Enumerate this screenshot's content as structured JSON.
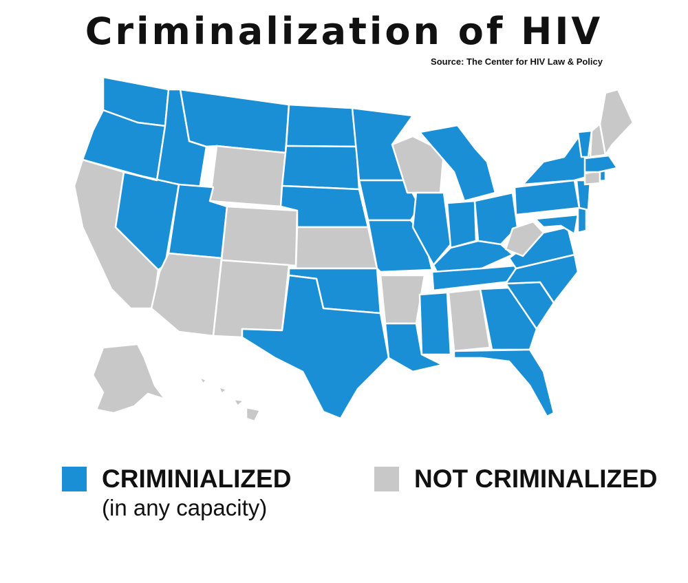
{
  "title": "Criminalization of HIV",
  "source": "Source: The Center for HIV Law & Policy",
  "colors": {
    "criminalized": "#1a8fd6",
    "not_criminalized": "#c8c8c8"
  },
  "legend": {
    "criminalized": {
      "label": "CRIMINIALIZED",
      "sublabel": "(in any capacity)"
    },
    "not_criminalized": {
      "label": "NOT CRIMINALIZED"
    }
  },
  "states": {
    "WA": "criminalized",
    "OR": "criminalized",
    "CA": "not_criminalized",
    "NV": "criminalized",
    "ID": "criminalized",
    "MT": "criminalized",
    "WY": "not_criminalized",
    "UT": "criminalized",
    "AZ": "not_criminalized",
    "CO": "not_criminalized",
    "NM": "not_criminalized",
    "ND": "criminalized",
    "SD": "criminalized",
    "NE": "criminalized",
    "KS": "not_criminalized",
    "OK": "criminalized",
    "TX": "criminalized",
    "MN": "criminalized",
    "IA": "criminalized",
    "MO": "criminalized",
    "AR": "not_criminalized",
    "LA": "criminalized",
    "WI": "not_criminalized",
    "IL": "criminalized",
    "MI": "criminalized",
    "IN": "criminalized",
    "OH": "criminalized",
    "KY": "criminalized",
    "TN": "criminalized",
    "MS": "criminalized",
    "AL": "not_criminalized",
    "GA": "criminalized",
    "FL": "criminalized",
    "SC": "criminalized",
    "NC": "criminalized",
    "VA": "criminalized",
    "WV": "not_criminalized",
    "PA": "criminalized",
    "NY": "criminalized",
    "NJ": "criminalized",
    "DE": "criminalized",
    "MD": "criminalized",
    "CT": "not_criminalized",
    "RI": "criminalized",
    "MA": "criminalized",
    "VT": "criminalized",
    "NH": "not_criminalized",
    "ME": "not_criminalized",
    "AK": "not_criminalized",
    "HI": "not_criminalized"
  }
}
